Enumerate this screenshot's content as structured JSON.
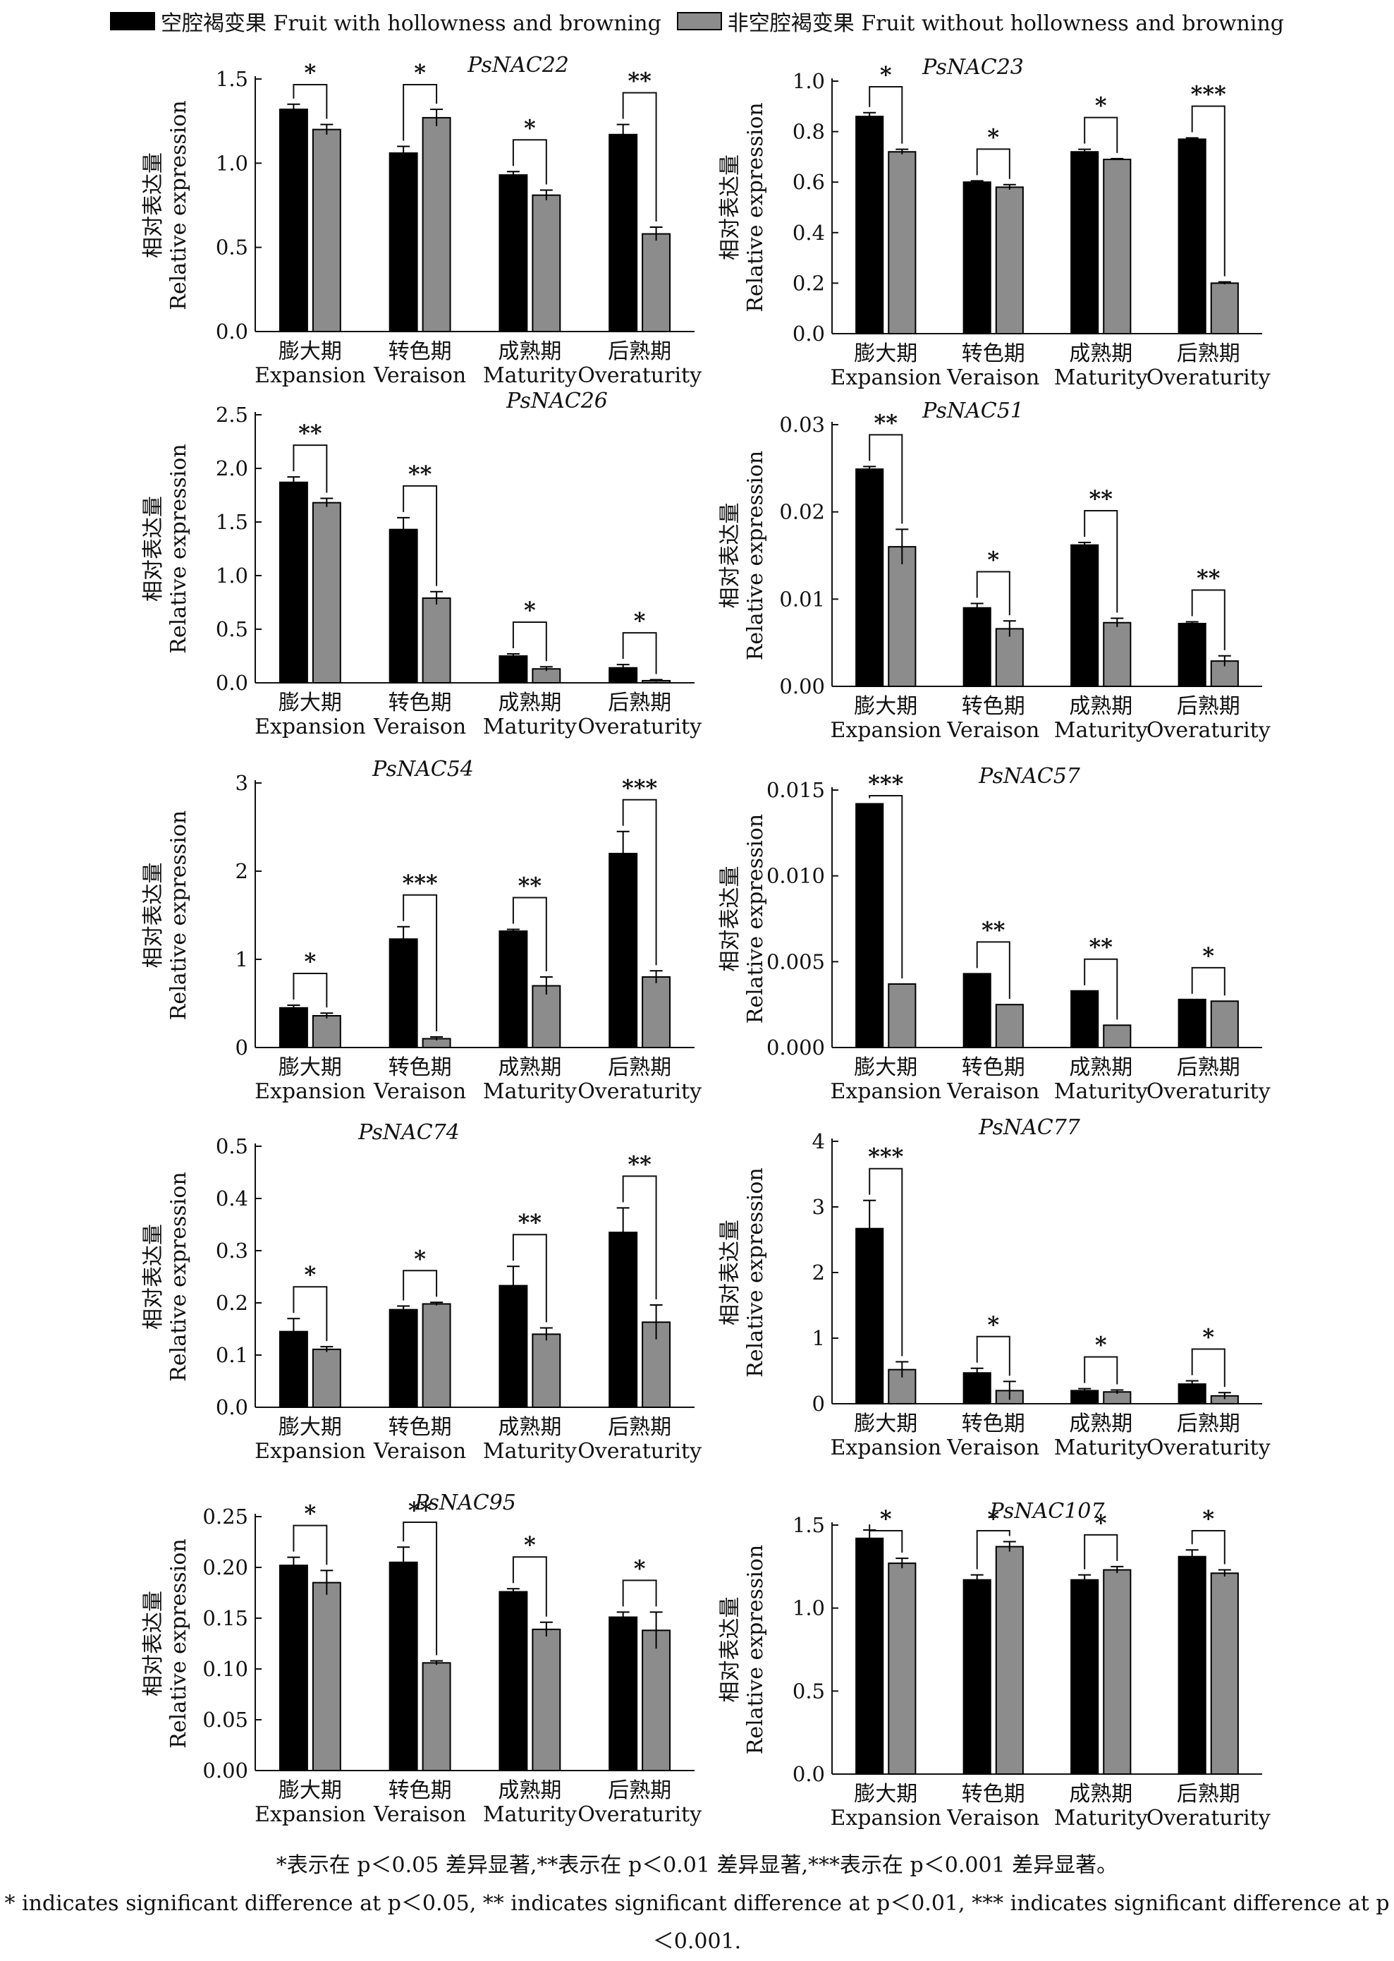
{
  "legend": {
    "items": [
      {
        "label": "空腔褐变果 Fruit with hollowness and browning",
        "color": "#000000"
      },
      {
        "label": "非空腔褐变果 Fruit without hollowness and browning",
        "color": "#8c8c8c"
      }
    ]
  },
  "footnote": {
    "line1": "*表示在 p＜0.05 差异显著,**表示在 p＜0.01 差异显著,***表示在 p＜0.001 差异显著。",
    "line2": "* indicates significant difference at p＜0.05, ** indicates significant difference at p＜0.01, *** indicates significant difference at p＜0.001."
  },
  "chart_data": [
    {
      "type": "bar",
      "title": "PsNAC22",
      "ylabel_cn": "相对表达量",
      "ylabel_en": "Relative expression",
      "categories_cn": [
        "膨大期",
        "转色期",
        "成熟期",
        "后熟期"
      ],
      "categories_en": [
        "Expansion",
        "Veraison",
        "Maturity",
        "Overaturity"
      ],
      "ylim": [
        0,
        1.5
      ],
      "yticks": [
        "0.0",
        "0.5",
        "1.0",
        "1.5"
      ],
      "series": [
        {
          "name": "空腔褐变果 Fruit with hollowness and browning",
          "values": [
            1.32,
            1.06,
            0.93,
            1.17
          ],
          "errors": [
            0.03,
            0.04,
            0.02,
            0.06
          ]
        },
        {
          "name": "非空腔褐变果 Fruit without hollowness and browning",
          "values": [
            1.2,
            1.27,
            0.81,
            0.58
          ],
          "errors": [
            0.03,
            0.05,
            0.03,
            0.04
          ]
        }
      ],
      "significance": [
        "*",
        "*",
        "*",
        "**"
      ]
    },
    {
      "type": "bar",
      "title": "PsNAC23",
      "ylabel_cn": "相对表达量",
      "ylabel_en": "Relative expression",
      "categories_cn": [
        "膨大期",
        "转色期",
        "成熟期",
        "后熟期"
      ],
      "categories_en": [
        "Expansion",
        "Veraison",
        "Maturity",
        "Overaturity"
      ],
      "ylim": [
        0,
        1.0
      ],
      "yticks": [
        "0.0",
        "0.2",
        "0.4",
        "0.6",
        "0.8",
        "1.0"
      ],
      "series": [
        {
          "name": "空腔褐变果 Fruit with hollowness and browning",
          "values": [
            0.86,
            0.6,
            0.72,
            0.77
          ],
          "errors": [
            0.015,
            0.005,
            0.01,
            0.005
          ]
        },
        {
          "name": "非空腔褐变果 Fruit without hollowness and browning",
          "values": [
            0.72,
            0.58,
            0.69,
            0.2
          ],
          "errors": [
            0.01,
            0.01,
            0.003,
            0.005
          ]
        }
      ],
      "significance": [
        "*",
        "*",
        "*",
        "***"
      ]
    },
    {
      "type": "bar",
      "title": "PsNAC26",
      "ylabel_cn": "相对表达量",
      "ylabel_en": "Relative expression",
      "categories_cn": [
        "膨大期",
        "转色期",
        "成熟期",
        "后熟期"
      ],
      "categories_en": [
        "Expansion",
        "Veraison",
        "Maturity",
        "Overaturity"
      ],
      "ylim": [
        0,
        2.5
      ],
      "yticks": [
        "0.0",
        "0.5",
        "1.0",
        "1.5",
        "2.0",
        "2.5"
      ],
      "series": [
        {
          "name": "空腔褐变果 Fruit with hollowness and browning",
          "values": [
            1.87,
            1.43,
            0.25,
            0.14
          ],
          "errors": [
            0.05,
            0.11,
            0.02,
            0.03
          ]
        },
        {
          "name": "非空腔褐变果 Fruit without hollowness and browning",
          "values": [
            1.68,
            0.79,
            0.13,
            0.02
          ],
          "errors": [
            0.04,
            0.06,
            0.02,
            0.01
          ]
        }
      ],
      "significance": [
        "**",
        "**",
        "*",
        "*"
      ]
    },
    {
      "type": "bar",
      "title": "PsNAC51",
      "ylabel_cn": "相对表达量",
      "ylabel_en": "Relative expression",
      "categories_cn": [
        "膨大期",
        "转色期",
        "成熟期",
        "后熟期"
      ],
      "categories_en": [
        "Expansion",
        "Veraison",
        "Maturity",
        "Overaturity"
      ],
      "ylim": [
        0,
        0.03
      ],
      "yticks": [
        "0.00",
        "0.01",
        "0.02",
        "0.03"
      ],
      "series": [
        {
          "name": "空腔褐变果 Fruit with hollowness and browning",
          "values": [
            0.0249,
            0.009,
            0.0162,
            0.0072
          ],
          "errors": [
            0.0003,
            0.0005,
            0.0003,
            0.0002
          ]
        },
        {
          "name": "非空腔褐变果 Fruit without hollowness and browning",
          "values": [
            0.016,
            0.0066,
            0.0073,
            0.0029
          ],
          "errors": [
            0.002,
            0.0009,
            0.0005,
            0.0006
          ]
        }
      ],
      "significance": [
        "**",
        "*",
        "**",
        "**"
      ]
    },
    {
      "type": "bar",
      "title": "PsNAC54",
      "ylabel_cn": "相对表达量",
      "ylabel_en": "Relative expression",
      "categories_cn": [
        "膨大期",
        "转色期",
        "成熟期",
        "后熟期"
      ],
      "categories_en": [
        "Expansion",
        "Veraison",
        "Maturity",
        "Overaturity"
      ],
      "ylim": [
        0,
        3
      ],
      "yticks": [
        "0",
        "1",
        "2",
        "3"
      ],
      "series": [
        {
          "name": "空腔褐变果 Fruit with hollowness and browning",
          "values": [
            0.45,
            1.23,
            1.32,
            2.2
          ],
          "errors": [
            0.03,
            0.14,
            0.02,
            0.25
          ]
        },
        {
          "name": "非空腔褐变果 Fruit without hollowness and browning",
          "values": [
            0.36,
            0.1,
            0.7,
            0.8
          ],
          "errors": [
            0.03,
            0.02,
            0.1,
            0.07
          ]
        }
      ],
      "significance": [
        "*",
        "***",
        "**",
        "***"
      ]
    },
    {
      "type": "bar",
      "title": "PsNAC57",
      "ylabel_cn": "相对表达量",
      "ylabel_en": "Relative expression",
      "categories_cn": [
        "膨大期",
        "转色期",
        "成熟期",
        "后熟期"
      ],
      "categories_en": [
        "Expansion",
        "Veraison",
        "Maturity",
        "Overaturity"
      ],
      "ylim": [
        0,
        0.015
      ],
      "yticks": [
        "0.000",
        "0.005",
        "0.010",
        "0.015"
      ],
      "series": [
        {
          "name": "空腔褐变果 Fruit with hollowness and browning",
          "values": [
            0.0142,
            0.0043,
            0.0033,
            0.0028
          ],
          "errors": [
            0,
            0,
            0,
            0
          ]
        },
        {
          "name": "非空腔褐变果 Fruit without hollowness and browning",
          "values": [
            0.0037,
            0.0025,
            0.0013,
            0.0027
          ],
          "errors": [
            0,
            0,
            0,
            0
          ]
        }
      ],
      "significance": [
        "***",
        "**",
        "**",
        "*"
      ]
    },
    {
      "type": "bar",
      "title": "PsNAC74",
      "ylabel_cn": "相对表达量",
      "ylabel_en": "Relative expression",
      "categories_cn": [
        "膨大期",
        "转色期",
        "成熟期",
        "后熟期"
      ],
      "categories_en": [
        "Expansion",
        "Veraison",
        "Maturity",
        "Overaturity"
      ],
      "ylim": [
        0,
        0.5
      ],
      "yticks": [
        "0.0",
        "0.1",
        "0.2",
        "0.3",
        "0.4",
        "0.5"
      ],
      "series": [
        {
          "name": "空腔褐变果 Fruit with hollowness and browning",
          "values": [
            0.145,
            0.187,
            0.233,
            0.335
          ],
          "errors": [
            0.025,
            0.007,
            0.037,
            0.047
          ]
        },
        {
          "name": "非空腔褐变果 Fruit without hollowness and browning",
          "values": [
            0.111,
            0.198,
            0.14,
            0.163
          ],
          "errors": [
            0.005,
            0.003,
            0.012,
            0.033
          ]
        }
      ],
      "significance": [
        "*",
        "*",
        "**",
        "**"
      ]
    },
    {
      "type": "bar",
      "title": "PsNAC77",
      "ylabel_cn": "相对表达量",
      "ylabel_en": "Relative expression",
      "categories_cn": [
        "膨大期",
        "转色期",
        "成熟期",
        "后熟期"
      ],
      "categories_en": [
        "Expansion",
        "Veraison",
        "Maturity",
        "Overaturity"
      ],
      "ylim": [
        0,
        4
      ],
      "yticks": [
        "0",
        "1",
        "2",
        "3",
        "4"
      ],
      "series": [
        {
          "name": "空腔褐变果 Fruit with hollowness and browning",
          "values": [
            2.67,
            0.47,
            0.2,
            0.3
          ],
          "errors": [
            0.43,
            0.07,
            0.03,
            0.05
          ]
        },
        {
          "name": "非空腔褐变果 Fruit without hollowness and browning",
          "values": [
            0.52,
            0.2,
            0.18,
            0.12
          ],
          "errors": [
            0.12,
            0.14,
            0.03,
            0.05
          ]
        }
      ],
      "significance": [
        "***",
        "*",
        "*",
        "*"
      ]
    },
    {
      "type": "bar",
      "title": "PsNAC95",
      "ylabel_cn": "相对表达量",
      "ylabel_en": "Relative expression",
      "categories_cn": [
        "膨大期",
        "转色期",
        "成熟期",
        "后熟期"
      ],
      "categories_en": [
        "Expansion",
        "Veraison",
        "Maturity",
        "Overaturity"
      ],
      "ylim": [
        0,
        0.25
      ],
      "yticks": [
        "0.00",
        "0.05",
        "0.10",
        "0.15",
        "0.20",
        "0.25"
      ],
      "series": [
        {
          "name": "空腔褐变果 Fruit with hollowness and browning",
          "values": [
            0.202,
            0.205,
            0.176,
            0.151
          ],
          "errors": [
            0.008,
            0.015,
            0.003,
            0.005
          ]
        },
        {
          "name": "非空腔褐变果 Fruit without hollowness and browning",
          "values": [
            0.185,
            0.106,
            0.139,
            0.138
          ],
          "errors": [
            0.012,
            0.002,
            0.007,
            0.018
          ]
        }
      ],
      "significance": [
        "*",
        "**",
        "*",
        "*"
      ]
    },
    {
      "type": "bar",
      "title": "PsNAC107",
      "ylabel_cn": "相对表达量",
      "ylabel_en": "Relative expression",
      "categories_cn": [
        "膨大期",
        "转色期",
        "成熟期",
        "后熟期"
      ],
      "categories_en": [
        "Expansion",
        "Veraison",
        "Maturity",
        "Overaturity"
      ],
      "ylim": [
        0,
        1.5
      ],
      "yticks": [
        "0.0",
        "0.5",
        "1.0",
        "1.5"
      ],
      "series": [
        {
          "name": "空腔褐变果 Fruit with hollowness and browning",
          "values": [
            1.42,
            1.17,
            1.17,
            1.31
          ],
          "errors": [
            0.05,
            0.03,
            0.03,
            0.04
          ]
        },
        {
          "name": "非空腔褐变果 Fruit without hollowness and browning",
          "values": [
            1.27,
            1.37,
            1.23,
            1.21
          ],
          "errors": [
            0.03,
            0.03,
            0.02,
            0.02
          ]
        }
      ],
      "significance": [
        "*",
        "*",
        "*",
        "*"
      ]
    }
  ]
}
